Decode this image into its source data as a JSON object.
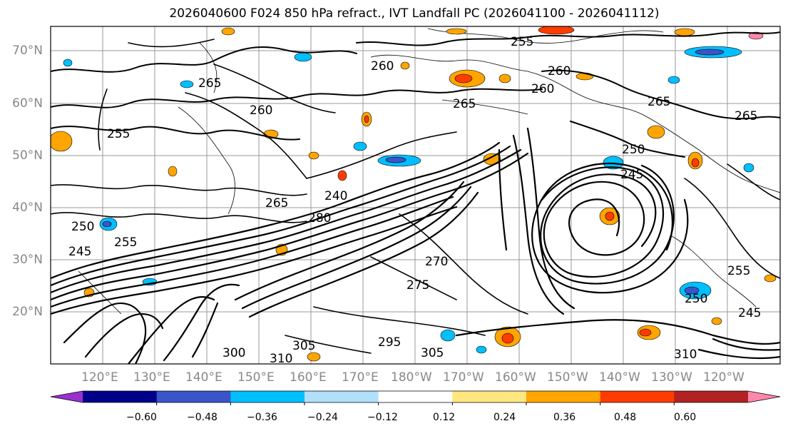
{
  "title": "2026040600 F024 850 hPa refract., IVT Landfall PC (2026041100 - 2026041112)",
  "latitude_labels": [
    "70°N",
    "60°N",
    "50°N",
    "40°N",
    "30°N",
    "20°N"
  ],
  "longitude_labels": [
    "120°E",
    "130°E",
    "140°E",
    "150°E",
    "160°E",
    "170°E",
    "180°W",
    "170°W",
    "160°W",
    "150°W",
    "140°W",
    "130°W",
    "120°W"
  ],
  "colorbar": {
    "ticks": [
      "−0.60",
      "−0.48",
      "−0.36",
      "−0.24",
      "−0.12",
      "0.12",
      "0.24",
      "0.36",
      "0.48",
      "0.60"
    ],
    "colors": [
      "#9932CC",
      "#00008B",
      "#3A55C8",
      "#00BFFF",
      "#B0E0FA",
      "#FFFFFF",
      "#FFE680",
      "#FFA500",
      "#FF3C00",
      "#B22222",
      "#FF88AA"
    ]
  },
  "contour_labels": [
    "255",
    "260",
    "265",
    "260",
    "265",
    "260",
    "265",
    "260",
    "255",
    "265",
    "250",
    "245",
    "240",
    "280",
    "250",
    "265",
    "255",
    "245",
    "270",
    "275",
    "250",
    "255",
    "245",
    "310",
    "305",
    "300",
    "305",
    "310",
    "295"
  ]
}
